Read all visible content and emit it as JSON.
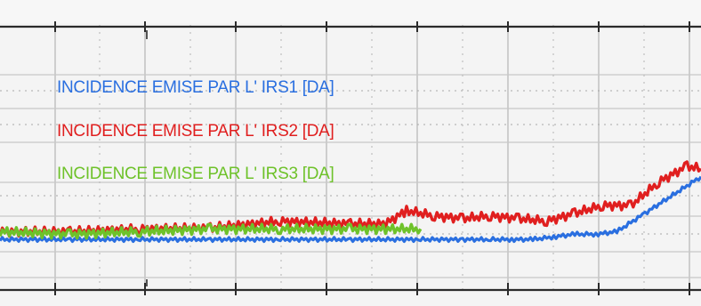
{
  "chart_data": {
    "type": "line",
    "grid": true,
    "legend": "top-left",
    "series": [
      {
        "name": "INCIDENCE EMISE PAR L' IRS1 [DA]",
        "color": "#2a6fe0",
        "x": [
          0,
          10,
          20,
          30,
          40,
          50,
          60,
          66,
          70,
          73,
          76,
          79,
          82,
          85,
          88,
          92,
          100
        ],
        "y": [
          0.4,
          0.4,
          0.4,
          0.4,
          0.4,
          0.4,
          0.4,
          0.4,
          0.4,
          0.4,
          0.4,
          0.45,
          0.5,
          0.5,
          0.55,
          0.9,
          1.6
        ]
      },
      {
        "name": "INCIDENCE EMISE PAR L' IRS2 [DA]",
        "color": "#e01f1f",
        "x": [
          0,
          10,
          20,
          30,
          40,
          50,
          55,
          58,
          62,
          66,
          70,
          74,
          78,
          82,
          86,
          90,
          94,
          98,
          100
        ],
        "y": [
          0.55,
          0.55,
          0.6,
          0.62,
          0.75,
          0.7,
          0.7,
          0.95,
          0.85,
          0.8,
          0.85,
          0.8,
          0.75,
          0.9,
          1.05,
          1.05,
          1.5,
          1.8,
          1.75
        ]
      },
      {
        "name": "INCIDENCE EMISE PAR L' IRS3 [DA]",
        "color": "#6ec22a",
        "x": [
          0,
          10,
          20,
          30,
          40,
          50,
          55,
          60
        ],
        "y": [
          0.55,
          0.5,
          0.55,
          0.6,
          0.6,
          0.6,
          0.6,
          0.6
        ]
      }
    ],
    "xlim": [
      0,
      100
    ],
    "ylim": [
      -0.6,
      4.5
    ]
  }
}
